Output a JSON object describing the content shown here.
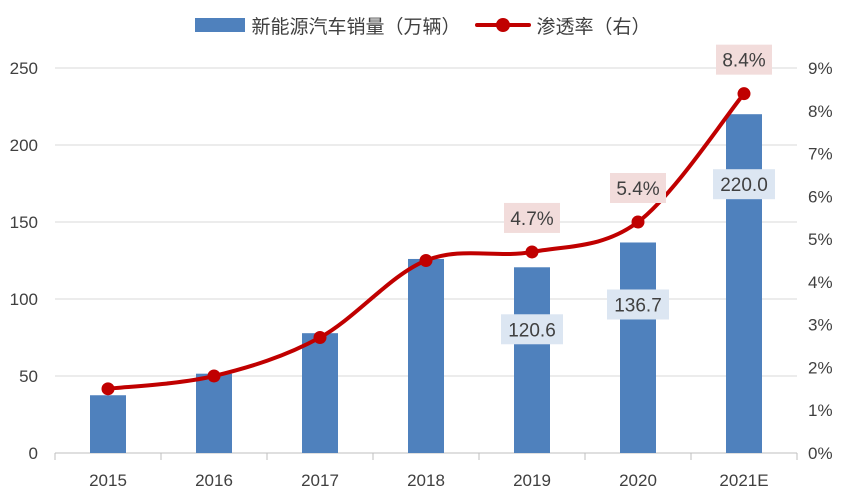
{
  "chart_data": {
    "type": "bar+line",
    "categories": [
      "2015",
      "2016",
      "2017",
      "2018",
      "2019",
      "2020",
      "2021E"
    ],
    "series": [
      {
        "name": "新能源汽车销量（万辆）",
        "type": "bar",
        "axis": "left",
        "color": "#4f81bd",
        "values": [
          37.5,
          51.5,
          77.8,
          126.0,
          120.6,
          136.7,
          220.0
        ]
      },
      {
        "name": "渗透率（右）",
        "type": "line",
        "axis": "right",
        "color": "#c00000",
        "values": [
          1.5,
          1.8,
          2.7,
          4.5,
          4.7,
          5.4,
          8.4
        ]
      }
    ],
    "bar_labels": [
      {
        "index": 4,
        "text": "120.6"
      },
      {
        "index": 5,
        "text": "136.7"
      },
      {
        "index": 6,
        "text": "220.0"
      }
    ],
    "line_labels": [
      {
        "index": 4,
        "text": "4.7%"
      },
      {
        "index": 5,
        "text": "5.4%"
      },
      {
        "index": 6,
        "text": "8.4%"
      }
    ],
    "left_axis": {
      "min": 0,
      "max": 250,
      "ticks": [
        "0",
        "50",
        "100",
        "150",
        "200",
        "250"
      ]
    },
    "right_axis": {
      "min": 0,
      "max": 9,
      "ticks": [
        "0%",
        "1%",
        "2%",
        "3%",
        "4%",
        "5%",
        "6%",
        "7%",
        "8%",
        "9%"
      ]
    },
    "grid": true,
    "legend_position": "top",
    "colors": {
      "bar_label_bg": "#dce6f2",
      "line_label_bg": "#f2dcdb",
      "grid": "#d9d9d9",
      "text": "#404040"
    }
  }
}
